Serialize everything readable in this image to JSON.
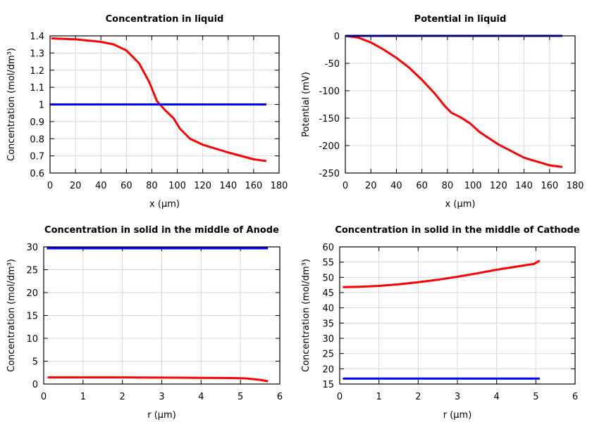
{
  "chart_data": [
    {
      "type": "line",
      "title": "Concentration in liquid",
      "xlabel": "x (µm)",
      "ylabel": "Concentration (mol/dm³)",
      "xlim": [
        0,
        180
      ],
      "ylim": [
        0.6,
        1.4
      ],
      "grid": true,
      "xticks": [
        0,
        20,
        40,
        60,
        80,
        100,
        120,
        140,
        160,
        180
      ],
      "yticks": [
        0.6,
        0.7,
        0.8,
        0.9,
        1,
        1.1,
        1.2,
        1.3,
        1.4
      ],
      "series": [
        {
          "color": "#ff0000",
          "x": [
            1,
            20,
            40,
            50,
            60,
            70,
            78,
            84,
            90,
            97,
            102,
            110,
            120,
            140,
            160,
            170
          ],
          "y": [
            1.385,
            1.38,
            1.365,
            1.35,
            1.315,
            1.24,
            1.13,
            1.02,
            0.97,
            0.92,
            0.86,
            0.8,
            0.765,
            0.72,
            0.68,
            0.67
          ]
        },
        {
          "color": "#0000ff",
          "x": [
            0,
            170
          ],
          "y": [
            1,
            1
          ]
        }
      ]
    },
    {
      "type": "line",
      "title": "Potential in liquid",
      "xlabel": "x (µm)",
      "ylabel": "Potential (mV)",
      "xlim": [
        0,
        180
      ],
      "ylim": [
        -250,
        0
      ],
      "grid": true,
      "xticks": [
        0,
        20,
        40,
        60,
        80,
        100,
        120,
        140,
        160,
        180
      ],
      "yticks": [
        -250,
        -200,
        -150,
        -100,
        -50,
        0
      ],
      "series": [
        {
          "color": "#ff0000",
          "x": [
            0,
            10,
            20,
            30,
            40,
            50,
            60,
            70,
            78,
            83,
            90,
            98,
            105,
            120,
            140,
            160,
            170
          ],
          "y": [
            0,
            -3,
            -12,
            -25,
            -40,
            -58,
            -80,
            -105,
            -128,
            -140,
            -148,
            -160,
            -175,
            -198,
            -222,
            -236,
            -239
          ]
        },
        {
          "color": "#0000ff",
          "x": [
            0,
            170
          ],
          "y": [
            0,
            0
          ]
        }
      ]
    },
    {
      "type": "line",
      "title": "Concentration in solid in the middle of Anode",
      "xlabel": "r (µm)",
      "ylabel": "Concentration (mol/dm³)",
      "xlim": [
        0,
        6
      ],
      "ylim": [
        0,
        30
      ],
      "grid": true,
      "xticks": [
        0,
        1,
        2,
        3,
        4,
        5,
        6
      ],
      "yticks": [
        0,
        5,
        10,
        15,
        20,
        25,
        30
      ],
      "series": [
        {
          "color": "#ff0000",
          "x": [
            0.1,
            1,
            2,
            3,
            4,
            4.8,
            5.1,
            5.3,
            5.5,
            5.7
          ],
          "y": [
            1.45,
            1.45,
            1.45,
            1.4,
            1.35,
            1.3,
            1.25,
            1.1,
            0.9,
            0.6
          ]
        },
        {
          "color": "#0000ff",
          "x": [
            0.08,
            5.7
          ],
          "y": [
            29.7,
            29.7
          ]
        }
      ]
    },
    {
      "type": "line",
      "title": "Concentration in solid in the middle of Cathode",
      "xlabel": "r (µm)",
      "ylabel": "Concentration (mol/dm³)",
      "xlim": [
        0,
        6
      ],
      "ylim": [
        15,
        60
      ],
      "grid": true,
      "xticks": [
        0,
        1,
        2,
        3,
        4,
        5,
        6
      ],
      "yticks": [
        15,
        20,
        25,
        30,
        35,
        40,
        45,
        50,
        55,
        60
      ],
      "series": [
        {
          "color": "#ff0000",
          "x": [
            0.08,
            0.5,
            1,
            1.5,
            2,
            2.5,
            3,
            3.5,
            4,
            4.5,
            4.95,
            5.1
          ],
          "y": [
            46.8,
            46.9,
            47.2,
            47.7,
            48.4,
            49.2,
            50.2,
            51.3,
            52.5,
            53.5,
            54.4,
            55.5
          ]
        },
        {
          "color": "#0000ff",
          "x": [
            0.08,
            5.1
          ],
          "y": [
            16.8,
            16.8
          ]
        }
      ]
    }
  ]
}
